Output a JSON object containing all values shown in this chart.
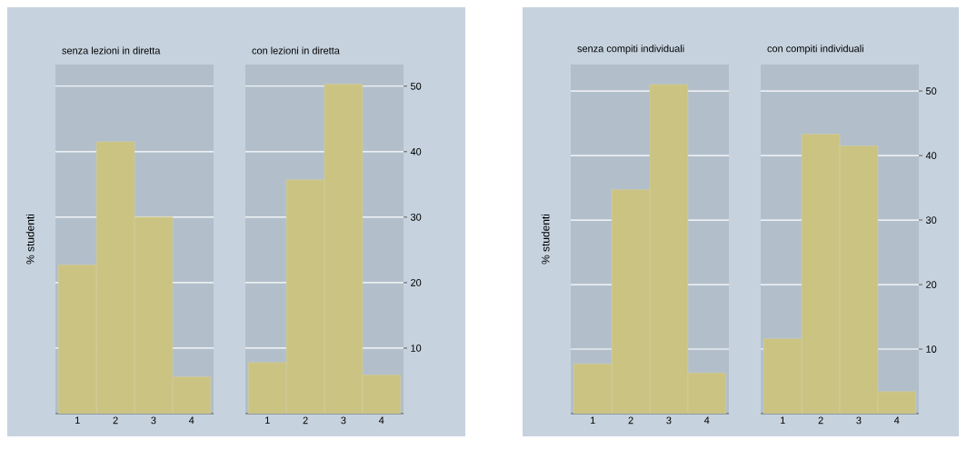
{
  "chart_data": [
    {
      "type": "bar",
      "title": "senza lezioni in diretta",
      "ylabel": "% studenti",
      "categories": [
        "1",
        "2",
        "3",
        "4"
      ],
      "values": [
        22.7,
        41.5,
        30.0,
        5.6
      ],
      "color": "#cbc382",
      "ylim": [
        0,
        53.3
      ],
      "yticks": [
        10,
        20,
        30,
        40,
        50
      ],
      "grid": "y",
      "tick_labels": "x"
    },
    {
      "type": "bar",
      "title": "con lezioni in diretta",
      "categories": [
        "1",
        "2",
        "3",
        "4"
      ],
      "values": [
        7.8,
        35.7,
        50.3,
        5.9
      ],
      "color": "#cbc382",
      "ylim": [
        0,
        53.3
      ],
      "yticks": [
        10,
        20,
        30,
        40,
        50
      ],
      "grid": "y"
    },
    {
      "type": "bar",
      "title": "senza compiti individuali",
      "ylabel": "% studenti",
      "categories": [
        "1",
        "2",
        "3",
        "4"
      ],
      "values": [
        7.7,
        34.7,
        51.0,
        6.3
      ],
      "color": "#cbc382",
      "ylim": [
        0,
        54.1
      ],
      "yticks": [
        10,
        20,
        30,
        40,
        50
      ],
      "grid": "y",
      "tick_labels": "x"
    },
    {
      "type": "bar",
      "title": "con compiti individuali",
      "categories": [
        "1",
        "2",
        "3",
        "4"
      ],
      "values": [
        11.6,
        43.3,
        41.5,
        3.4
      ],
      "color": "#cbc382",
      "ylim": [
        0,
        54.1
      ],
      "yticks": [
        10,
        20,
        30,
        40,
        50
      ],
      "grid": "y"
    }
  ]
}
